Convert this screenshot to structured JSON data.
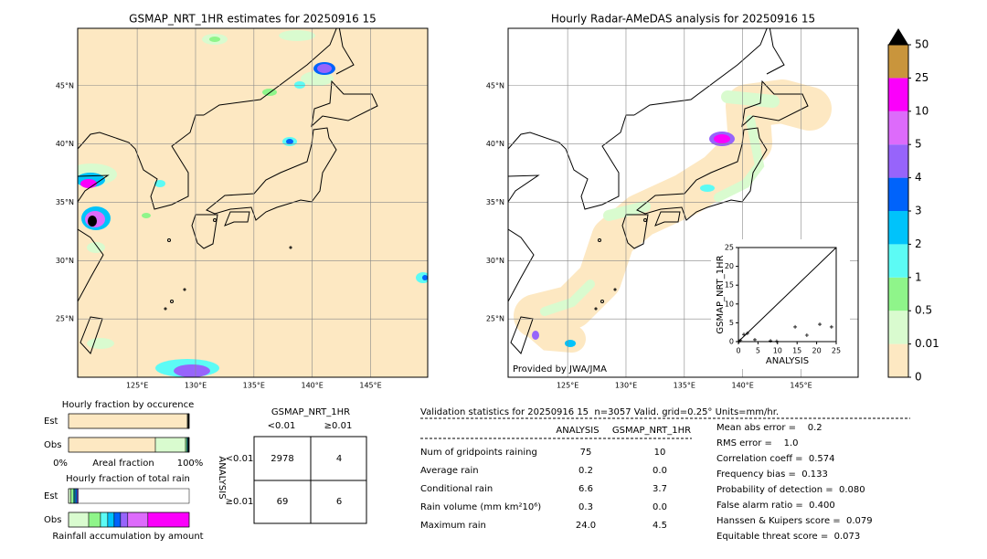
{
  "maps": [
    {
      "title": "GSMAP_NRT_1HR estimates for 20250916 15"
    },
    {
      "title": "Hourly Radar-AMeDAS analysis for 20250916 15",
      "credit": "Provided by JWA/JMA"
    }
  ],
  "lat_labels": [
    {
      "value": 45,
      "label": "45°N"
    },
    {
      "value": 40,
      "label": "40°N"
    },
    {
      "value": 35,
      "label": "35°N"
    },
    {
      "value": 30,
      "label": "30°N"
    },
    {
      "value": 25,
      "label": "25°N"
    }
  ],
  "lon_labels": [
    {
      "value": 125,
      "label": "125°E"
    },
    {
      "value": 130,
      "label": "130°E"
    },
    {
      "value": 135,
      "label": "135°E"
    },
    {
      "value": 140,
      "label": "140°E"
    },
    {
      "value": 145,
      "label": "145°E"
    }
  ],
  "colorbar": {
    "levels": [
      0,
      0.01,
      0.5,
      1,
      2,
      3,
      4,
      5,
      10,
      25,
      50
    ],
    "colors": [
      "#fde8c2",
      "#d9fbcf",
      "#8ff58a",
      "#5cfbf5",
      "#00c3fb",
      "#0063fb",
      "#9764fb",
      "#dd6bfb",
      "#fb00fb",
      "#c9953c"
    ]
  },
  "scatter": {
    "xlabel": "ANALYSIS",
    "ylabel": "GSMAP_NRT_1HR",
    "xlim": [
      0,
      25
    ],
    "ylim": [
      0,
      25
    ],
    "xticks": [
      0,
      5,
      10,
      15,
      20,
      25
    ],
    "yticks": [
      0,
      5,
      10,
      15,
      20,
      25
    ],
    "x": [
      0.2,
      0.5,
      1.4,
      2.3,
      4.2,
      8.2,
      9.8,
      14.5,
      17.5,
      20.8,
      23.8
    ],
    "y": [
      0.1,
      0.3,
      1.9,
      2.2,
      0.5,
      0.2,
      0.1,
      3.9,
      1.7,
      4.6,
      3.9
    ]
  },
  "occurrence": {
    "title": "Hourly fraction by occurence",
    "rows": [
      "Est",
      "Obs"
    ],
    "est": [
      0.985,
      0.005,
      0.003,
      0.003,
      0.002,
      0.001,
      0.001,
      0,
      0,
      0
    ],
    "obs": [
      0.72,
      0.25,
      0.01,
      0.008,
      0.005,
      0.003,
      0.002,
      0.001,
      0.001,
      0
    ],
    "left": "0%",
    "xlabel": "Areal fraction",
    "right": "100%"
  },
  "total_rain": {
    "title": "Hourly fraction of total rain",
    "rows": [
      "Est",
      "Obs"
    ],
    "est": [
      0,
      0.02,
      0.02,
      0.01,
      0.01,
      0.01,
      0.01,
      0,
      0,
      0
    ],
    "obs": [
      0,
      0.167,
      0.098,
      0.06,
      0.053,
      0.053,
      0.06,
      0.167,
      0.342,
      0
    ],
    "xlabel": "Rainfall accumulation by amount"
  },
  "contingency": {
    "title": "GSMAP_NRT_1HR",
    "col_labels": [
      "<0.01",
      "≥0.01"
    ],
    "row_title": "ANALYSIS",
    "row_labels": [
      "<0.01",
      "≥0.01"
    ],
    "cells": [
      [
        2978,
        4
      ],
      [
        69,
        6
      ]
    ]
  },
  "validation": {
    "header": "Validation statistics for 20250916 15  n=3057 Valid. grid=0.25° Units=mm/hr.",
    "columns": [
      "ANALYSIS",
      "GSMAP_NRT_1HR"
    ],
    "rows": [
      {
        "label": "Num of gridpoints raining",
        "values": [
          "75",
          "10"
        ]
      },
      {
        "label": "Average rain",
        "values": [
          "0.2",
          "0.0"
        ]
      },
      {
        "label": "Conditional rain",
        "values": [
          "6.6",
          "3.7"
        ]
      },
      {
        "label": "Rain volume (mm km²10⁶)",
        "values": [
          "0.3",
          "0.0"
        ]
      },
      {
        "label": "Maximum rain",
        "values": [
          "24.0",
          "4.5"
        ]
      }
    ],
    "scores": [
      "Mean abs error =    0.2",
      "RMS error =    1.0",
      "Correlation coeff =  0.574",
      "Frequency bias =  0.133",
      "Probability of detection =  0.080",
      "False alarm ratio =  0.400",
      "Hanssen & Kuipers score =  0.079",
      "Equitable threat score =  0.073"
    ]
  }
}
